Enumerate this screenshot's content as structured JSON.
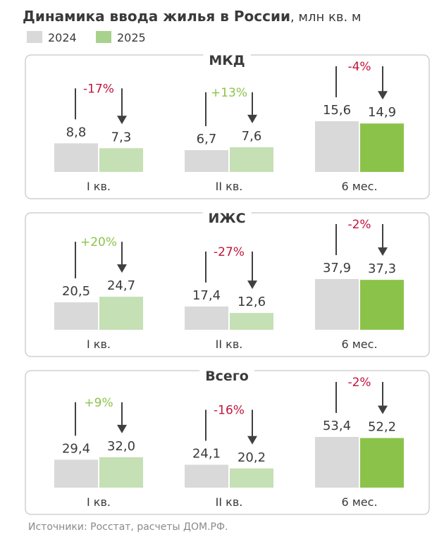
{
  "header": {
    "title": "Динамика ввода жилья в России",
    "units": ", млн кв. м"
  },
  "legend": [
    {
      "label": "2024",
      "color": "#d9d9d9"
    },
    {
      "label": "2025",
      "color": "#a9d18e"
    }
  ],
  "colors": {
    "y2024": "#d9d9d9",
    "y2025_quarter": "#c5e0b4",
    "y2025_halfyear": "#8bc34a",
    "positive": "#8bc34a",
    "negative": "#c0143c",
    "arrow": "#404040",
    "panel_border": "#c8c8c8"
  },
  "chart_data": [
    {
      "type": "bar",
      "title": "МКД",
      "categories": [
        "I кв.",
        "II кв.",
        "6 мес."
      ],
      "series": [
        {
          "name": "2024",
          "values": [
            8.8,
            6.7,
            15.6
          ],
          "labels": [
            "8,8",
            "6,7",
            "15,6"
          ]
        },
        {
          "name": "2025",
          "values": [
            7.3,
            7.6,
            14.9
          ],
          "labels": [
            "7,3",
            "7,6",
            "14,9"
          ]
        }
      ],
      "changes": [
        "-17%",
        "+13%",
        "-4%"
      ]
    },
    {
      "type": "bar",
      "title": "ИЖС",
      "categories": [
        "I кв.",
        "II кв.",
        "6 мес."
      ],
      "series": [
        {
          "name": "2024",
          "values": [
            20.5,
            17.4,
            37.9
          ],
          "labels": [
            "20,5",
            "17,4",
            "37,9"
          ]
        },
        {
          "name": "2025",
          "values": [
            24.7,
            12.6,
            37.3
          ],
          "labels": [
            "24,7",
            "12,6",
            "37,3"
          ]
        }
      ],
      "changes": [
        "+20%",
        "-27%",
        "-2%"
      ]
    },
    {
      "type": "bar",
      "title": "Всего",
      "categories": [
        "I кв.",
        "II кв.",
        "6 мес."
      ],
      "series": [
        {
          "name": "2024",
          "values": [
            29.4,
            24.1,
            53.4
          ],
          "labels": [
            "29,4",
            "24,1",
            "53,4"
          ]
        },
        {
          "name": "2025",
          "values": [
            32.0,
            20.2,
            52.2
          ],
          "labels": [
            "32,0",
            "20,2",
            "52,2"
          ]
        }
      ],
      "changes": [
        "+9%",
        "-16%",
        "-2%"
      ]
    }
  ],
  "footer": {
    "source": "Источники: Росстат, расчеты ДОМ.РФ."
  }
}
